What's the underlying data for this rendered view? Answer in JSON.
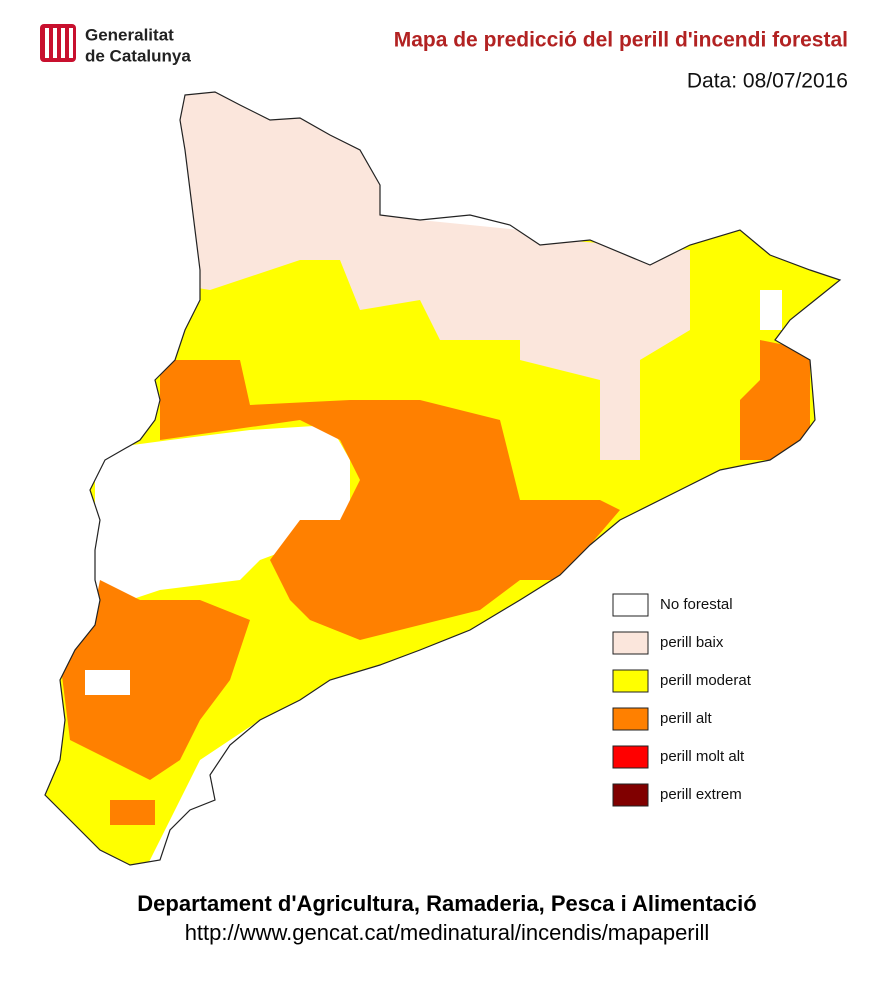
{
  "header": {
    "logo_line1": "Generalitat",
    "logo_line2": "de Catalunya",
    "title": "Mapa de predicció del perill d'incendi forestal",
    "date": "Data: 08/07/2016"
  },
  "legend": [
    {
      "label": "No forestal",
      "color": "#ffffff"
    },
    {
      "label": "perill baix",
      "color": "#fbe6dc"
    },
    {
      "label": "perill moderat",
      "color": "#ffff00"
    },
    {
      "label": "perill alt",
      "color": "#ff8000"
    },
    {
      "label": "perill molt alt",
      "color": "#ff0000"
    },
    {
      "label": "perill extrem",
      "color": "#800000"
    }
  ],
  "footer": {
    "department": "Departament d'Agricultura, Ramaderia, Pesca i Alimentació",
    "url": "http://www.gencat.cat/medinatural/incendis/mapaperill"
  }
}
